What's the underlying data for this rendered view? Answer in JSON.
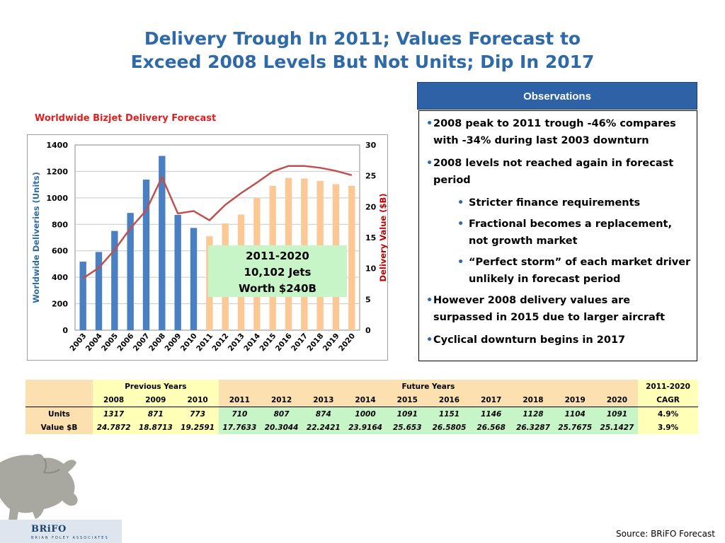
{
  "title_line1": "Delivery Trough In 2011; Values Forecast to",
  "title_line2": "Exceed 2008 Levels But Not Units; Dip In 2017",
  "chart_data": {
    "type": "bar",
    "title": "Worldwide Bizjet Delivery Forecast",
    "categories": [
      "2003",
      "2004",
      "2005",
      "2006",
      "2007",
      "2008",
      "2009",
      "2010",
      "2011",
      "2012",
      "2013",
      "2014",
      "2015",
      "2016",
      "2017",
      "2018",
      "2019",
      "2020"
    ],
    "ylabel": "Worldwide Deliveries (Units)",
    "y2label": "Delivery Value ($B)",
    "ylim": [
      0,
      1400
    ],
    "y2lim": [
      0,
      30
    ],
    "yticks": [
      "0",
      "200",
      "400",
      "600",
      "800",
      "1000",
      "1200",
      "1400"
    ],
    "y2ticks": [
      "0",
      "5",
      "10",
      "15",
      "20",
      "25",
      "30"
    ],
    "grid": true,
    "series": [
      {
        "type": "bar",
        "axis": "left",
        "color": "#4a7fc1",
        "values": [
          518,
          591,
          750,
          886,
          1138,
          1317,
          871,
          773,
          null,
          null,
          null,
          null,
          null,
          null,
          null,
          null,
          null,
          null
        ]
      },
      {
        "type": "bar",
        "axis": "left",
        "color": "#fcc896",
        "values": [
          null,
          null,
          null,
          null,
          null,
          null,
          null,
          null,
          710,
          807,
          874,
          1000,
          1091,
          1151,
          1146,
          1128,
          1104,
          1091
        ]
      },
      {
        "type": "line",
        "axis": "right",
        "color": "#c0504d",
        "values": [
          8.4,
          10.1,
          13.0,
          16.5,
          19.4,
          24.8,
          18.9,
          19.3,
          17.8,
          20.3,
          22.2,
          23.9,
          25.7,
          26.6,
          26.6,
          26.3,
          25.8,
          25.1
        ]
      }
    ],
    "annotation": [
      "2011-2020",
      "10,102 Jets",
      "Worth $240B"
    ]
  },
  "observations": {
    "header": "Observations",
    "items": [
      {
        "level": 1,
        "text": "2008 peak to 2011 trough -46% compares with -34% during last 2003 downturn"
      },
      {
        "level": 1,
        "text": "2008 levels not reached again in forecast period"
      },
      {
        "level": 2,
        "text": "Stricter finance requirements"
      },
      {
        "level": 2,
        "text": "Fractional becomes a replacement, not growth market"
      },
      {
        "level": 2,
        "text": "“Perfect storm” of each market driver unlikely in forecast period"
      },
      {
        "level": 1,
        "text": "However 2008 delivery values are surpassed in 2015 due to larger aircraft"
      },
      {
        "level": 1,
        "text": "Cyclical downturn begins in 2017"
      }
    ],
    "bullet": "•"
  },
  "table": {
    "group_previous": "Previous Years",
    "group_future": "Future Years",
    "group_cagr": "2011-2020",
    "cagr_label": "CAGR",
    "years": [
      "2008",
      "2009",
      "2010",
      "2011",
      "2012",
      "2013",
      "2014",
      "2015",
      "2016",
      "2017",
      "2018",
      "2019",
      "2020"
    ],
    "rows": [
      {
        "label": "Units",
        "values": [
          "1317",
          "871",
          "773",
          "710",
          "807",
          "874",
          "1000",
          "1091",
          "1151",
          "1146",
          "1128",
          "1104",
          "1091"
        ],
        "cagr": "4.9%"
      },
      {
        "label": "Value $B",
        "values": [
          "24.7872",
          "18.8713",
          "19.2591",
          "17.7633",
          "20.3044",
          "22.2421",
          "23.9164",
          "25.653",
          "26.5805",
          "26.568",
          "26.3287",
          "25.7675",
          "25.1427"
        ],
        "cagr": "3.9%"
      }
    ]
  },
  "logo": {
    "name": "BRiFO",
    "subtitle": "BRIAN FOLEY ASSOCIATES"
  },
  "source": "Source: BRiFO Forecast",
  "colors": {
    "title": "#2e6aa8",
    "chart_title": "#e02020",
    "header_bg": "#2e62a6",
    "bar_past": "#4a7fc1",
    "bar_future": "#fcc896",
    "line": "#c0504d",
    "annotation_bg": "#c8f5c8",
    "table_tan": "#fce0b0",
    "table_yellow": "#ffffb8",
    "table_green": "#c8f5c8"
  }
}
